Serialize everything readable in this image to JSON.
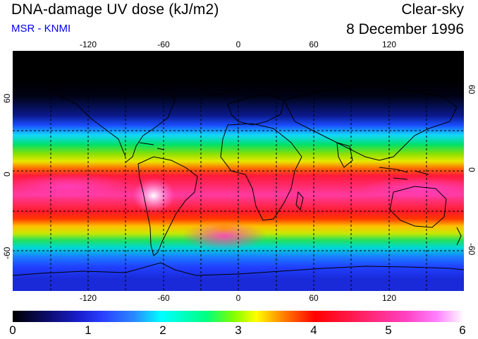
{
  "header": {
    "title": "DNA-damage UV dose (kJ/m2)",
    "subtitle": "MSR - KNMI",
    "condition": "Clear-sky",
    "date": "8 December 1996"
  },
  "map": {
    "projection": "equirectangular",
    "lon_range": [
      -180,
      180
    ],
    "lat_range": [
      -90,
      90
    ],
    "gridlines": "dashed",
    "lon_ticks": [
      "-120",
      "-60",
      "0",
      "60",
      "120"
    ],
    "lat_ticks_left": [
      "60",
      "0",
      "-60"
    ],
    "lat_ticks_right": [
      "60",
      "0",
      "-60"
    ],
    "background_color": "#000000",
    "coastline_color": "#000000"
  },
  "colorbar": {
    "min": 0,
    "max": 6,
    "ticks": [
      "0",
      "1",
      "2",
      "3",
      "4",
      "5",
      "6"
    ]
  }
}
